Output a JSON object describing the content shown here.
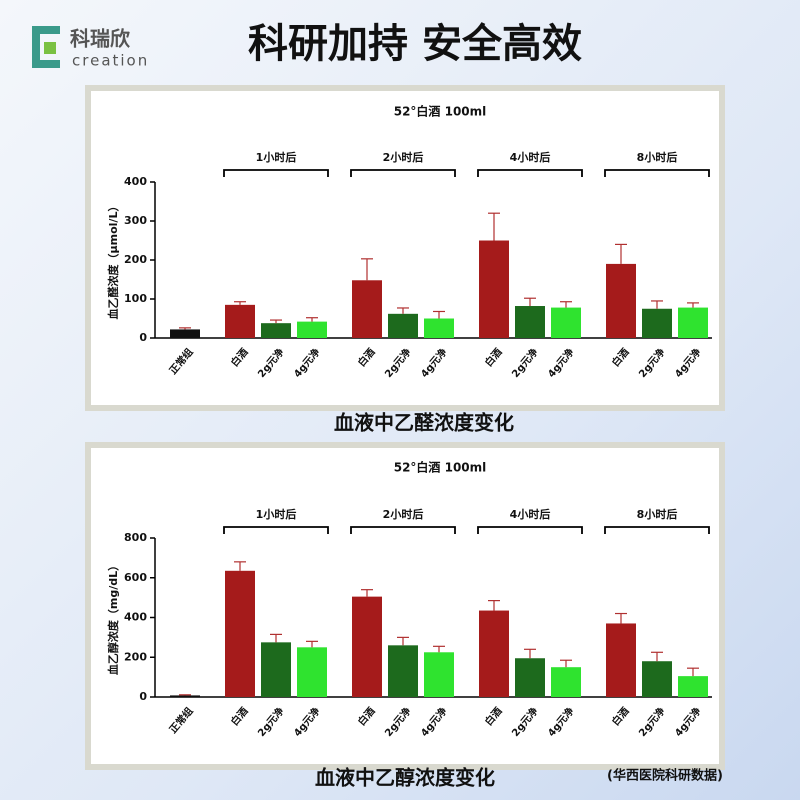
{
  "header": {
    "brand": "科瑞欣",
    "brand_en": "creation",
    "title": "科研加持 安全高效"
  },
  "chart_data": [
    {
      "type": "bar",
      "title": "52°白酒 100ml",
      "y_label": "血乙醛浓度（μmol/L）",
      "caption": "血液中乙醛浓度变化",
      "ylim": [
        0,
        400
      ],
      "yticks": [
        0,
        100,
        200,
        300,
        400
      ],
      "error_color": "#b03030",
      "control": {
        "category": "正常组",
        "value": 22,
        "error": 4,
        "color": "#111111"
      },
      "colors": [
        "#a51b1b",
        "#1d6a1d",
        "#2fe32f"
      ],
      "groups": [
        {
          "name": "1小时后",
          "categories": [
            "白酒",
            "2g元净",
            "4g元净"
          ],
          "values": [
            85,
            38,
            42
          ],
          "errors": [
            8,
            8,
            10
          ]
        },
        {
          "name": "2小时后",
          "categories": [
            "白酒",
            "2g元净",
            "4g元净"
          ],
          "values": [
            148,
            62,
            50
          ],
          "errors": [
            55,
            15,
            18
          ]
        },
        {
          "name": "4小时后",
          "categories": [
            "白酒",
            "2g元净",
            "4g元净"
          ],
          "values": [
            250,
            82,
            78
          ],
          "errors": [
            70,
            20,
            15
          ]
        },
        {
          "name": "8小时后",
          "categories": [
            "白酒",
            "2g元净",
            "4g元净"
          ],
          "values": [
            190,
            75,
            78
          ],
          "errors": [
            50,
            20,
            12
          ]
        }
      ]
    },
    {
      "type": "bar",
      "title": "52°白酒 100ml",
      "y_label": "血乙醇浓度（mg/dL）",
      "caption": "血液中乙醇浓度变化",
      "ylim": [
        0,
        800
      ],
      "yticks": [
        0,
        200,
        400,
        600,
        800
      ],
      "error_color": "#b03030",
      "control": {
        "category": "正常组",
        "value": 8,
        "error": 3,
        "color": "#111111"
      },
      "colors": [
        "#a51b1b",
        "#1d6a1d",
        "#2fe32f"
      ],
      "groups": [
        {
          "name": "1小时后",
          "categories": [
            "白酒",
            "2g元净",
            "4g元净"
          ],
          "values": [
            635,
            275,
            250
          ],
          "errors": [
            45,
            40,
            30
          ]
        },
        {
          "name": "2小时后",
          "categories": [
            "白酒",
            "2g元净",
            "4g元净"
          ],
          "values": [
            505,
            260,
            225
          ],
          "errors": [
            35,
            40,
            30
          ]
        },
        {
          "name": "4小时后",
          "categories": [
            "白酒",
            "2g元净",
            "4g元净"
          ],
          "values": [
            435,
            195,
            150
          ],
          "errors": [
            50,
            45,
            35
          ]
        },
        {
          "name": "8小时后",
          "categories": [
            "白酒",
            "2g元净",
            "4g元净"
          ],
          "values": [
            370,
            180,
            105
          ],
          "errors": [
            50,
            45,
            40
          ]
        }
      ]
    }
  ],
  "source": "(华西医院科研数据)"
}
